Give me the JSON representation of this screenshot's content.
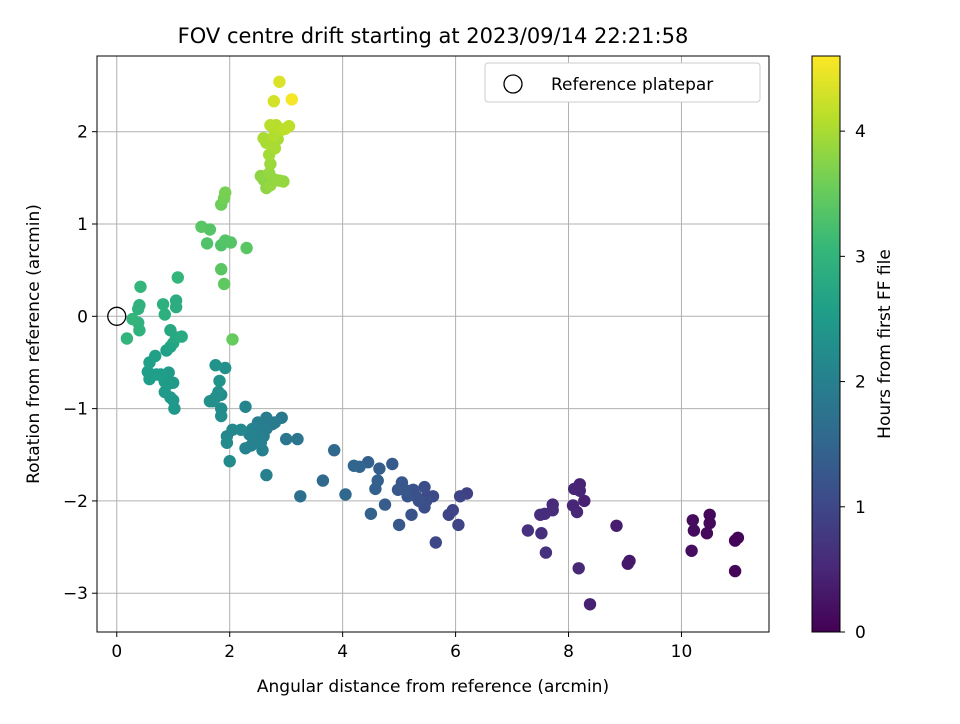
{
  "chart_data": {
    "type": "scatter",
    "title": "FOV centre drift starting at 2023/09/14 22:21:58",
    "xlabel": "Angular distance from reference (arcmin)",
    "ylabel": "Rotation from reference (arcmin)",
    "xlim": [
      -0.35,
      11.55
    ],
    "ylim": [
      -3.42,
      2.82
    ],
    "xticks": [
      "0",
      "2",
      "4",
      "6",
      "8",
      "10"
    ],
    "yticks": [
      "−3",
      "−2",
      "−1",
      "0",
      "1",
      "2"
    ],
    "grid": true,
    "legend": {
      "position": "top-right",
      "entries": [
        "Reference platepar"
      ]
    },
    "reference_point": {
      "x": 0,
      "y": 0
    },
    "colorbar": {
      "label": "Hours from first FF file",
      "range": [
        0,
        4.6
      ],
      "ticks": [
        "0",
        "1",
        "2",
        "3",
        "4"
      ],
      "colormap": "viridis",
      "colors": [
        "#440154",
        "#482878",
        "#3e4989",
        "#31688e",
        "#26828e",
        "#1f9e89",
        "#35b779",
        "#6ece58",
        "#b5de2b",
        "#fde725"
      ]
    },
    "series": [
      {
        "points": [
          [
            10.95,
            -2.43,
            0.05
          ],
          [
            11.0,
            -2.4,
            0.05
          ],
          [
            10.95,
            -2.76,
            0.07
          ],
          [
            10.5,
            -2.15,
            0.1
          ],
          [
            10.5,
            -2.24,
            0.1
          ],
          [
            10.45,
            -2.35,
            0.12
          ],
          [
            10.2,
            -2.21,
            0.14
          ],
          [
            10.22,
            -2.32,
            0.14
          ],
          [
            10.18,
            -2.54,
            0.16
          ],
          [
            9.08,
            -2.65,
            0.3
          ],
          [
            9.05,
            -2.68,
            0.3
          ],
          [
            8.85,
            -2.27,
            0.38
          ],
          [
            8.38,
            -3.12,
            0.42
          ],
          [
            8.2,
            -1.82,
            0.45
          ],
          [
            8.28,
            -2.0,
            0.45
          ],
          [
            8.1,
            -1.87,
            0.48
          ],
          [
            8.2,
            -1.89,
            0.48
          ],
          [
            8.08,
            -2.05,
            0.5
          ],
          [
            8.15,
            -2.12,
            0.5
          ],
          [
            8.18,
            -2.73,
            0.52
          ],
          [
            7.72,
            -2.04,
            0.55
          ],
          [
            7.72,
            -2.1,
            0.58
          ],
          [
            7.58,
            -2.14,
            0.6
          ],
          [
            7.5,
            -2.15,
            0.6
          ],
          [
            7.52,
            -2.35,
            0.62
          ],
          [
            7.28,
            -2.32,
            0.65
          ],
          [
            7.6,
            -2.56,
            0.65
          ],
          [
            6.2,
            -1.92,
            0.9
          ],
          [
            6.08,
            -1.95,
            0.95
          ],
          [
            5.95,
            -2.1,
            0.95
          ],
          [
            5.88,
            -2.15,
            0.95
          ],
          [
            6.05,
            -2.26,
            0.95
          ],
          [
            5.65,
            -2.45,
            1.0
          ],
          [
            5.6,
            -1.95,
            1.05
          ],
          [
            5.5,
            -1.95,
            1.05
          ],
          [
            5.45,
            -1.85,
            1.1
          ],
          [
            5.48,
            -2.0,
            1.1
          ],
          [
            5.45,
            -2.07,
            1.1
          ],
          [
            5.35,
            -2.0,
            1.15
          ],
          [
            5.25,
            -1.88,
            1.15
          ],
          [
            5.3,
            -1.95,
            1.15
          ],
          [
            5.22,
            -2.15,
            1.2
          ],
          [
            5.15,
            -1.95,
            1.2
          ],
          [
            5.05,
            -1.8,
            1.25
          ],
          [
            5.1,
            -1.88,
            1.25
          ],
          [
            4.98,
            -1.88,
            1.25
          ],
          [
            5.0,
            -2.26,
            1.25
          ],
          [
            4.88,
            -1.6,
            1.3
          ],
          [
            4.75,
            -2.04,
            1.35
          ],
          [
            4.65,
            -1.65,
            1.35
          ],
          [
            4.62,
            -1.78,
            1.4
          ],
          [
            4.58,
            -1.87,
            1.4
          ],
          [
            4.45,
            -1.58,
            1.4
          ],
          [
            4.5,
            -2.14,
            1.45
          ],
          [
            4.3,
            -1.63,
            1.5
          ],
          [
            4.2,
            -1.62,
            1.5
          ],
          [
            4.05,
            -1.93,
            1.55
          ],
          [
            3.85,
            -1.45,
            1.55
          ],
          [
            3.65,
            -1.78,
            1.6
          ],
          [
            3.25,
            -1.95,
            1.7
          ],
          [
            3.2,
            -1.33,
            1.8
          ],
          [
            3.0,
            -1.33,
            1.8
          ],
          [
            2.92,
            -1.1,
            1.85
          ],
          [
            2.8,
            -1.15,
            1.9
          ],
          [
            2.75,
            -1.17,
            1.9
          ],
          [
            2.65,
            -1.1,
            1.9
          ],
          [
            2.65,
            -1.22,
            1.95
          ],
          [
            2.6,
            -1.3,
            1.95
          ],
          [
            2.5,
            -1.15,
            1.95
          ],
          [
            2.45,
            -1.22,
            2.0
          ],
          [
            2.5,
            -1.33,
            2.0
          ],
          [
            2.55,
            -1.37,
            2.0
          ],
          [
            2.58,
            -1.45,
            2.0
          ],
          [
            2.4,
            -1.22,
            2.05
          ],
          [
            2.35,
            -1.28,
            2.05
          ],
          [
            2.38,
            -1.4,
            2.05
          ],
          [
            2.28,
            -1.43,
            2.05
          ],
          [
            2.65,
            -1.72,
            2.0
          ],
          [
            2.28,
            -0.98,
            2.1
          ],
          [
            2.2,
            -1.23,
            2.15
          ],
          [
            2.05,
            -1.23,
            2.15
          ],
          [
            1.95,
            -1.3,
            2.15
          ],
          [
            1.95,
            -1.37,
            2.2
          ],
          [
            2.0,
            -1.57,
            2.2
          ],
          [
            1.85,
            -1.0,
            2.25
          ],
          [
            1.85,
            -1.08,
            2.25
          ],
          [
            1.85,
            -0.85,
            2.25
          ],
          [
            1.8,
            -0.82,
            2.3
          ],
          [
            1.75,
            -0.88,
            2.3
          ],
          [
            1.7,
            -0.92,
            2.3
          ],
          [
            1.65,
            -0.92,
            2.3
          ],
          [
            1.92,
            -0.56,
            2.3
          ],
          [
            1.82,
            -0.7,
            2.35
          ],
          [
            1.75,
            -0.53,
            2.35
          ],
          [
            1.02,
            -1.0,
            2.45
          ],
          [
            1.0,
            -0.91,
            2.45
          ],
          [
            0.95,
            -0.88,
            2.45
          ],
          [
            1.0,
            -0.72,
            2.45
          ],
          [
            0.92,
            -0.73,
            2.5
          ],
          [
            0.92,
            -0.61,
            2.5
          ],
          [
            0.85,
            -0.71,
            2.5
          ],
          [
            0.82,
            -0.66,
            2.5
          ],
          [
            0.85,
            -0.82,
            2.5
          ],
          [
            0.78,
            -0.63,
            2.55
          ],
          [
            0.7,
            -0.63,
            2.55
          ],
          [
            0.58,
            -0.68,
            2.55
          ],
          [
            0.55,
            -0.6,
            2.55
          ],
          [
            0.58,
            -0.5,
            2.6
          ],
          [
            0.68,
            -0.43,
            2.6
          ],
          [
            0.88,
            -0.37,
            2.6
          ],
          [
            0.95,
            -0.33,
            2.65
          ],
          [
            1.0,
            -0.29,
            2.7
          ],
          [
            0.95,
            -0.15,
            2.75
          ],
          [
            1.05,
            -0.23,
            2.75
          ],
          [
            1.15,
            -0.22,
            2.8
          ],
          [
            1.05,
            0.17,
            2.85
          ],
          [
            1.05,
            0.1,
            2.85
          ],
          [
            0.85,
            0.02,
            2.9
          ],
          [
            0.82,
            0.13,
            2.9
          ],
          [
            0.4,
            -0.15,
            2.95
          ],
          [
            0.38,
            -0.07,
            2.95
          ],
          [
            0.38,
            0.08,
            2.95
          ],
          [
            0.4,
            0.12,
            2.95
          ],
          [
            0.28,
            -0.03,
            3.0
          ],
          [
            0.18,
            -0.24,
            3.0
          ],
          [
            0.42,
            0.32,
            3.05
          ],
          [
            1.08,
            0.42,
            3.05
          ],
          [
            1.6,
            0.79,
            3.3
          ],
          [
            1.65,
            0.94,
            3.35
          ],
          [
            1.5,
            0.97,
            3.4
          ],
          [
            1.85,
            0.77,
            3.3
          ],
          [
            1.92,
            0.82,
            3.35
          ],
          [
            2.02,
            0.8,
            3.35
          ],
          [
            2.3,
            0.74,
            3.4
          ],
          [
            1.85,
            0.51,
            3.4
          ],
          [
            1.9,
            0.35,
            3.45
          ],
          [
            2.05,
            -0.25,
            3.5
          ],
          [
            1.85,
            1.21,
            3.55
          ],
          [
            1.9,
            1.28,
            3.6
          ],
          [
            1.92,
            1.34,
            3.65
          ],
          [
            2.65,
            1.39,
            3.8
          ],
          [
            2.6,
            1.48,
            3.8
          ],
          [
            2.55,
            1.52,
            3.8
          ],
          [
            2.7,
            1.55,
            3.85
          ],
          [
            2.72,
            1.42,
            3.85
          ],
          [
            2.8,
            1.48,
            3.85
          ],
          [
            2.88,
            1.47,
            3.85
          ],
          [
            2.95,
            1.46,
            3.85
          ],
          [
            2.72,
            1.65,
            3.9
          ],
          [
            2.7,
            1.75,
            3.95
          ],
          [
            2.75,
            1.88,
            3.95
          ],
          [
            2.8,
            1.82,
            4.0
          ],
          [
            2.65,
            1.88,
            4.0
          ],
          [
            2.6,
            1.93,
            4.0
          ],
          [
            2.85,
            1.92,
            4.0
          ],
          [
            2.78,
            1.95,
            4.05
          ],
          [
            2.92,
            2.02,
            4.1
          ],
          [
            2.72,
            2.07,
            4.1
          ],
          [
            2.82,
            2.07,
            4.1
          ],
          [
            3.05,
            2.06,
            4.15
          ],
          [
            2.98,
            2.03,
            4.15
          ],
          [
            2.78,
            2.33,
            4.3
          ],
          [
            2.88,
            2.54,
            4.35
          ],
          [
            3.1,
            2.35,
            4.55
          ]
        ]
      }
    ]
  }
}
